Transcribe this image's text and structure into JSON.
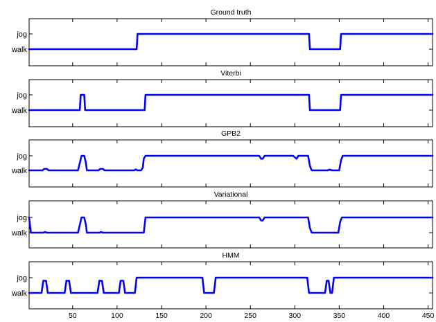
{
  "chart_data": [
    {
      "type": "line",
      "title": "Ground truth",
      "ylevels": [
        "walk",
        "jog"
      ],
      "xlim": [
        1,
        455
      ],
      "series": [
        {
          "values": [
            [
              1,
              0
            ],
            [
              122,
              0
            ],
            [
              123,
              1
            ],
            [
              316,
              1
            ],
            [
              317,
              0
            ],
            [
              351,
              0
            ],
            [
              352,
              1
            ],
            [
              455,
              1
            ]
          ]
        }
      ]
    },
    {
      "type": "line",
      "title": "Viterbi",
      "ylevels": [
        "walk",
        "jog"
      ],
      "xlim": [
        1,
        455
      ],
      "series": [
        {
          "values": [
            [
              1,
              0
            ],
            [
              58,
              0
            ],
            [
              59,
              1
            ],
            [
              63,
              1
            ],
            [
              64,
              0
            ],
            [
              131,
              0
            ],
            [
              132,
              1
            ],
            [
              316,
              1
            ],
            [
              317,
              0
            ],
            [
              351,
              0
            ],
            [
              352,
              1
            ],
            [
              455,
              1
            ]
          ]
        }
      ]
    },
    {
      "type": "line",
      "title": "GPB2",
      "ylevels": [
        "walk",
        "jog"
      ],
      "xlim": [
        1,
        455
      ],
      "series": [
        {
          "values": [
            [
              1,
              0
            ],
            [
              16,
              0
            ],
            [
              18,
              0.1
            ],
            [
              21,
              0.1
            ],
            [
              23,
              0
            ],
            [
              56,
              0
            ],
            [
              58,
              0.5
            ],
            [
              60,
              1
            ],
            [
              63,
              1
            ],
            [
              65,
              0.5
            ],
            [
              66,
              0
            ],
            [
              79,
              0
            ],
            [
              81,
              0.1
            ],
            [
              84,
              0.1
            ],
            [
              86,
              0
            ],
            [
              119,
              0
            ],
            [
              121,
              0.06
            ],
            [
              123,
              0
            ],
            [
              127,
              0
            ],
            [
              129,
              0.2
            ],
            [
              130,
              0.8
            ],
            [
              132,
              1
            ],
            [
              260,
              1
            ],
            [
              262,
              0.8
            ],
            [
              264,
              0.8
            ],
            [
              266,
              1
            ],
            [
              298,
              1
            ],
            [
              300,
              0.9
            ],
            [
              302,
              0.8
            ],
            [
              304,
              1
            ],
            [
              315,
              1
            ],
            [
              317,
              0.3
            ],
            [
              319,
              0
            ],
            [
              337,
              0
            ],
            [
              339,
              0.05
            ],
            [
              342,
              0
            ],
            [
              350,
              0
            ],
            [
              352,
              0.7
            ],
            [
              354,
              1
            ],
            [
              455,
              1
            ]
          ]
        }
      ]
    },
    {
      "type": "line",
      "title": "Variational",
      "ylevels": [
        "walk",
        "jog"
      ],
      "xlim": [
        1,
        455
      ],
      "series": [
        {
          "values": [
            [
              1,
              1
            ],
            [
              3,
              0
            ],
            [
              17,
              0
            ],
            [
              19,
              0.05
            ],
            [
              21,
              0
            ],
            [
              56,
              0
            ],
            [
              58,
              0.5
            ],
            [
              60,
              1
            ],
            [
              63,
              1
            ],
            [
              65,
              0.5
            ],
            [
              66,
              0
            ],
            [
              80,
              0
            ],
            [
              82,
              0.05
            ],
            [
              84,
              0
            ],
            [
              130,
              0
            ],
            [
              132,
              1
            ],
            [
              260,
              1
            ],
            [
              262,
              0.8
            ],
            [
              264,
              0.8
            ],
            [
              266,
              1
            ],
            [
              315,
              1
            ],
            [
              317,
              0.3
            ],
            [
              319,
              0
            ],
            [
              349,
              0
            ],
            [
              351,
              0.7
            ],
            [
              353,
              1
            ],
            [
              455,
              1
            ]
          ]
        }
      ]
    },
    {
      "type": "line",
      "title": "HMM",
      "ylevels": [
        "walk",
        "jog"
      ],
      "xlim": [
        1,
        455
      ],
      "series": [
        {
          "values": [
            [
              1,
              0
            ],
            [
              15,
              0
            ],
            [
              17,
              0.8
            ],
            [
              20,
              0.8
            ],
            [
              22,
              0
            ],
            [
              41,
              0
            ],
            [
              43,
              0.8
            ],
            [
              46,
              0.8
            ],
            [
              48,
              0
            ],
            [
              78,
              0
            ],
            [
              80,
              0.8
            ],
            [
              83,
              0.8
            ],
            [
              85,
              0
            ],
            [
              102,
              0
            ],
            [
              104,
              0.8
            ],
            [
              107,
              0.8
            ],
            [
              109,
              0
            ],
            [
              120,
              0
            ],
            [
              122,
              1
            ],
            [
              196,
              1
            ],
            [
              198,
              0
            ],
            [
              209,
              0
            ],
            [
              211,
              1
            ],
            [
              314,
              1
            ],
            [
              316,
              0
            ],
            [
              334,
              0
            ],
            [
              336,
              0.8
            ],
            [
              338,
              0.8
            ],
            [
              340,
              0
            ],
            [
              342,
              0
            ],
            [
              344,
              1
            ],
            [
              455,
              1
            ]
          ]
        }
      ]
    }
  ],
  "xticks": [
    50,
    100,
    150,
    200,
    250,
    300,
    350,
    400,
    450
  ],
  "colors": {
    "line": "#0000ff",
    "axes": "#000000",
    "background": "#ffffff"
  }
}
